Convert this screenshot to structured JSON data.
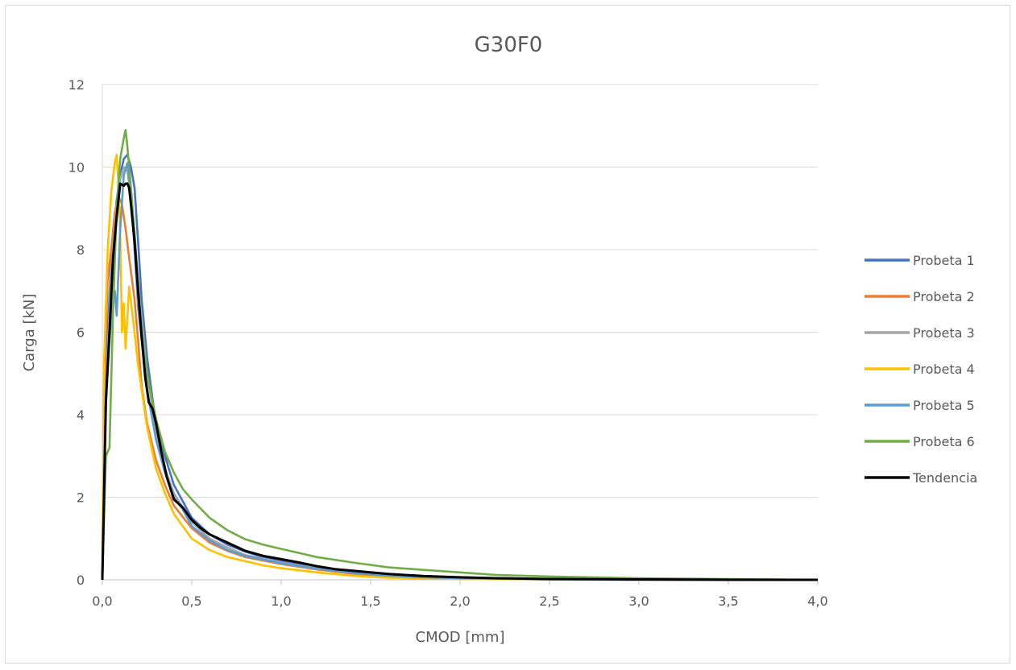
{
  "chart_data": {
    "type": "line",
    "title": "G30F0",
    "xlabel": "CMOD [mm]",
    "ylabel": "Carga [kN]",
    "xlim": [
      0,
      4.0
    ],
    "ylim": [
      0,
      12
    ],
    "x_ticks": [
      "0,0",
      "0,5",
      "1,0",
      "1,5",
      "2,0",
      "2,5",
      "3,0",
      "3,5",
      "4,0"
    ],
    "y_ticks": [
      "0",
      "2",
      "4",
      "6",
      "8",
      "10",
      "12"
    ],
    "grid": "horizontal",
    "legend_position": "right",
    "series": [
      {
        "name": "Probeta 1",
        "color": "#4472C4",
        "x": [
          0,
          0.02,
          0.05,
          0.08,
          0.1,
          0.12,
          0.14,
          0.16,
          0.18,
          0.2,
          0.22,
          0.25,
          0.28,
          0.3,
          0.35,
          0.4,
          0.45,
          0.5,
          0.6,
          0.7,
          0.8,
          0.9,
          1.0,
          1.2,
          1.4,
          1.6,
          1.8,
          2.0,
          2.5,
          3.0,
          3.5,
          4.0
        ],
        "y": [
          0,
          5.0,
          7.8,
          9.2,
          9.8,
          10.2,
          10.3,
          10.0,
          9.5,
          8.2,
          6.8,
          5.4,
          4.4,
          3.8,
          3.0,
          2.3,
          1.9,
          1.5,
          1.1,
          0.85,
          0.68,
          0.55,
          0.45,
          0.3,
          0.2,
          0.13,
          0.08,
          0.05,
          0.02,
          0.01,
          0.0,
          0.0
        ]
      },
      {
        "name": "Probeta 2",
        "color": "#ED7D31",
        "x": [
          0,
          0.01,
          0.03,
          0.05,
          0.07,
          0.09,
          0.11,
          0.13,
          0.15,
          0.18,
          0.2,
          0.22,
          0.25,
          0.3,
          0.35,
          0.4,
          0.5,
          0.6,
          0.7,
          0.8,
          1.0,
          1.2,
          1.4,
          1.6,
          1.8,
          2.0,
          2.5,
          3.0,
          3.5,
          4.0
        ],
        "y": [
          0,
          4.8,
          7.3,
          8.0,
          8.9,
          9.3,
          9.1,
          8.5,
          7.8,
          6.8,
          5.8,
          4.7,
          3.8,
          2.9,
          2.3,
          1.8,
          1.25,
          0.9,
          0.7,
          0.55,
          0.38,
          0.25,
          0.15,
          0.08,
          0.05,
          0.03,
          0.01,
          0.0,
          0.0,
          0.0
        ]
      },
      {
        "name": "Probeta 3",
        "color": "#A5A5A5",
        "x": [
          0,
          0.02,
          0.05,
          0.08,
          0.1,
          0.12,
          0.14,
          0.16,
          0.18,
          0.2,
          0.25,
          0.3,
          0.35,
          0.4,
          0.5,
          0.6,
          0.7,
          0.8,
          1.0,
          1.2,
          1.4,
          1.6,
          1.8,
          2.0,
          2.5,
          3.0,
          3.5,
          4.0
        ],
        "y": [
          0,
          4.5,
          7.5,
          9.0,
          9.7,
          10.0,
          9.9,
          9.3,
          8.4,
          7.2,
          5.0,
          3.6,
          2.7,
          2.1,
          1.4,
          1.0,
          0.78,
          0.6,
          0.42,
          0.28,
          0.18,
          0.1,
          0.06,
          0.04,
          0.01,
          0.0,
          0.0,
          0.0
        ]
      },
      {
        "name": "Probeta 4",
        "color": "#FFC000",
        "x": [
          0,
          0.01,
          0.03,
          0.05,
          0.07,
          0.08,
          0.09,
          0.1,
          0.11,
          0.12,
          0.13,
          0.15,
          0.18,
          0.2,
          0.25,
          0.3,
          0.35,
          0.4,
          0.5,
          0.6,
          0.7,
          0.8,
          0.9,
          1.0,
          1.2,
          1.4,
          1.6,
          1.8,
          2.0,
          2.5,
          3.0,
          3.5,
          4.0
        ],
        "y": [
          0,
          5.3,
          8.0,
          9.4,
          10.1,
          10.3,
          9.6,
          8.3,
          6.0,
          6.7,
          5.6,
          7.1,
          6.0,
          5.2,
          3.7,
          2.7,
          2.1,
          1.6,
          1.0,
          0.72,
          0.55,
          0.45,
          0.35,
          0.28,
          0.18,
          0.1,
          0.05,
          0.03,
          0.02,
          0.01,
          0.0,
          0.0,
          0.0
        ]
      },
      {
        "name": "Probeta 5",
        "color": "#5B9BD5",
        "x": [
          0,
          0.02,
          0.05,
          0.07,
          0.08,
          0.1,
          0.12,
          0.14,
          0.16,
          0.18,
          0.2,
          0.25,
          0.3,
          0.35,
          0.4,
          0.45,
          0.5,
          0.6,
          0.7,
          0.8,
          1.0,
          1.2,
          1.4,
          1.6,
          1.8,
          2.0,
          2.5,
          3.0,
          3.5,
          4.0
        ],
        "y": [
          0,
          4.5,
          6.4,
          7.0,
          6.4,
          8.5,
          9.8,
          10.1,
          9.4,
          8.0,
          6.6,
          4.6,
          3.4,
          2.6,
          2.0,
          1.7,
          1.3,
          0.95,
          0.72,
          0.58,
          0.4,
          0.27,
          0.17,
          0.1,
          0.06,
          0.04,
          0.01,
          0.0,
          0.0,
          0.0
        ]
      },
      {
        "name": "Probeta 6",
        "color": "#70AD47",
        "x": [
          0,
          0.02,
          0.04,
          0.06,
          0.08,
          0.1,
          0.12,
          0.13,
          0.14,
          0.16,
          0.18,
          0.2,
          0.22,
          0.25,
          0.3,
          0.35,
          0.4,
          0.45,
          0.5,
          0.6,
          0.7,
          0.8,
          0.9,
          1.0,
          1.2,
          1.4,
          1.6,
          1.8,
          2.0,
          2.2,
          2.5,
          3.0,
          3.5,
          4.0
        ],
        "y": [
          0,
          3.0,
          3.2,
          6.5,
          9.0,
          10.2,
          10.7,
          10.9,
          10.5,
          9.5,
          8.4,
          7.2,
          6.0,
          5.0,
          3.9,
          3.1,
          2.6,
          2.2,
          1.95,
          1.5,
          1.2,
          0.98,
          0.85,
          0.75,
          0.55,
          0.42,
          0.3,
          0.24,
          0.18,
          0.12,
          0.08,
          0.04,
          0.02,
          0.0
        ]
      },
      {
        "name": "Tendencia",
        "color": "#000000",
        "x": [
          0,
          0.02,
          0.04,
          0.06,
          0.08,
          0.1,
          0.12,
          0.13,
          0.14,
          0.15,
          0.16,
          0.18,
          0.2,
          0.22,
          0.24,
          0.26,
          0.28,
          0.3,
          0.33,
          0.36,
          0.4,
          0.45,
          0.5,
          0.55,
          0.6,
          0.7,
          0.8,
          0.9,
          1.0,
          1.1,
          1.2,
          1.3,
          1.4,
          1.5,
          1.6,
          1.8,
          2.0,
          2.2,
          2.5,
          3.0,
          3.5,
          4.0
        ],
        "y": [
          0,
          4.3,
          6.0,
          7.8,
          8.8,
          9.6,
          9.55,
          9.6,
          9.6,
          9.5,
          9.1,
          8.2,
          7.0,
          5.9,
          4.9,
          4.3,
          4.15,
          3.8,
          3.1,
          2.5,
          1.95,
          1.75,
          1.45,
          1.25,
          1.1,
          0.9,
          0.7,
          0.58,
          0.5,
          0.42,
          0.33,
          0.26,
          0.22,
          0.18,
          0.14,
          0.09,
          0.06,
          0.04,
          0.02,
          0.01,
          0.0,
          0.0
        ]
      }
    ]
  }
}
